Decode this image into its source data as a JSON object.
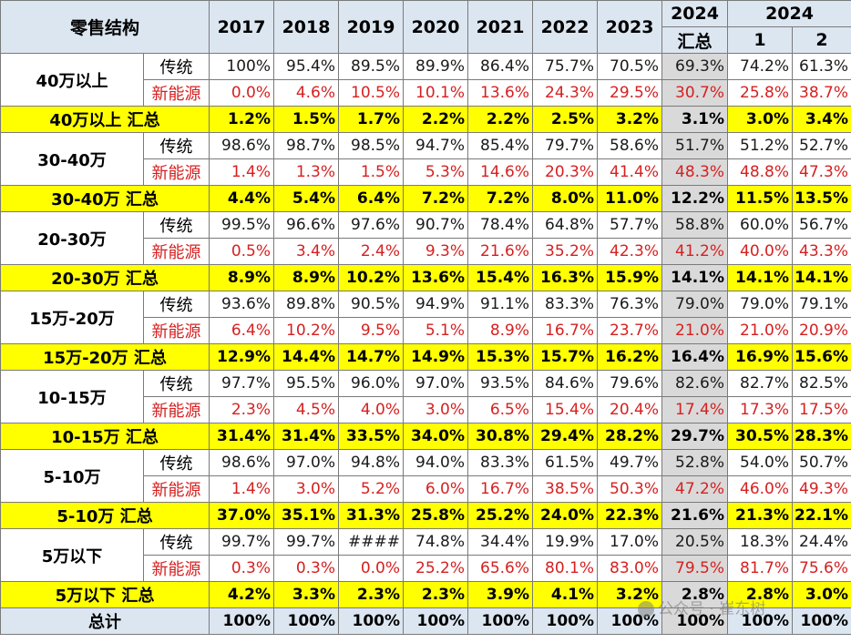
{
  "header": {
    "corner": "零售结构",
    "years": [
      "2017",
      "2018",
      "2019",
      "2020",
      "2021",
      "2022",
      "2023"
    ],
    "ytd_year": "2024",
    "ytd_label": "汇总",
    "monthly_year": "2024",
    "months": [
      "1",
      "2"
    ]
  },
  "groups": [
    {
      "category": "40万以上",
      "trad_label": "传统",
      "nev_label": "新能源",
      "trad": [
        "100%",
        "95.4%",
        "89.5%",
        "89.9%",
        "86.4%",
        "75.7%",
        "70.5%",
        "69.3%",
        "74.2%",
        "61.3%"
      ],
      "nev": [
        "0.0%",
        "4.6%",
        "10.5%",
        "10.1%",
        "13.6%",
        "24.3%",
        "29.5%",
        "30.7%",
        "25.8%",
        "38.7%"
      ],
      "sum_label": "40万以上 汇总",
      "sum": [
        "1.2%",
        "1.5%",
        "1.7%",
        "2.2%",
        "2.2%",
        "2.5%",
        "3.2%",
        "3.1%",
        "3.0%",
        "3.4%"
      ]
    },
    {
      "category": "30-40万",
      "trad_label": "传统",
      "nev_label": "新能源",
      "trad": [
        "98.6%",
        "98.7%",
        "98.5%",
        "94.7%",
        "85.4%",
        "79.7%",
        "58.6%",
        "51.7%",
        "51.2%",
        "52.7%"
      ],
      "nev": [
        "1.4%",
        "1.3%",
        "1.5%",
        "5.3%",
        "14.6%",
        "20.3%",
        "41.4%",
        "48.3%",
        "48.8%",
        "47.3%"
      ],
      "sum_label": "30-40万 汇总",
      "sum": [
        "4.4%",
        "5.4%",
        "6.4%",
        "7.2%",
        "7.2%",
        "8.0%",
        "11.0%",
        "12.2%",
        "11.5%",
        "13.5%"
      ]
    },
    {
      "category": "20-30万",
      "trad_label": "传统",
      "nev_label": "新能源",
      "trad": [
        "99.5%",
        "96.6%",
        "97.6%",
        "90.7%",
        "78.4%",
        "64.8%",
        "57.7%",
        "58.8%",
        "60.0%",
        "56.7%"
      ],
      "nev": [
        "0.5%",
        "3.4%",
        "2.4%",
        "9.3%",
        "21.6%",
        "35.2%",
        "42.3%",
        "41.2%",
        "40.0%",
        "43.3%"
      ],
      "sum_label": "20-30万 汇总",
      "sum": [
        "8.9%",
        "8.9%",
        "10.2%",
        "13.6%",
        "15.4%",
        "16.3%",
        "15.9%",
        "14.1%",
        "14.1%",
        "14.1%"
      ]
    },
    {
      "category": "15万-20万",
      "trad_label": "传统",
      "nev_label": "新能源",
      "trad": [
        "93.6%",
        "89.8%",
        "90.5%",
        "94.9%",
        "91.1%",
        "83.3%",
        "76.3%",
        "79.0%",
        "79.0%",
        "79.1%"
      ],
      "nev": [
        "6.4%",
        "10.2%",
        "9.5%",
        "5.1%",
        "8.9%",
        "16.7%",
        "23.7%",
        "21.0%",
        "21.0%",
        "20.9%"
      ],
      "sum_label": "15万-20万 汇总",
      "sum": [
        "12.9%",
        "14.4%",
        "14.7%",
        "14.9%",
        "15.3%",
        "15.7%",
        "16.2%",
        "16.4%",
        "16.9%",
        "15.6%"
      ]
    },
    {
      "category": "10-15万",
      "trad_label": "传统",
      "nev_label": "新能源",
      "trad": [
        "97.7%",
        "95.5%",
        "96.0%",
        "97.0%",
        "93.5%",
        "84.6%",
        "79.6%",
        "82.6%",
        "82.7%",
        "82.5%"
      ],
      "nev": [
        "2.3%",
        "4.5%",
        "4.0%",
        "3.0%",
        "6.5%",
        "15.4%",
        "20.4%",
        "17.4%",
        "17.3%",
        "17.5%"
      ],
      "sum_label": "10-15万 汇总",
      "sum": [
        "31.4%",
        "31.4%",
        "33.5%",
        "34.0%",
        "30.8%",
        "29.4%",
        "28.2%",
        "29.7%",
        "30.5%",
        "28.3%"
      ]
    },
    {
      "category": "5-10万",
      "trad_label": "传统",
      "nev_label": "新能源",
      "trad": [
        "98.6%",
        "97.0%",
        "94.8%",
        "94.0%",
        "83.3%",
        "61.5%",
        "49.7%",
        "52.8%",
        "54.0%",
        "50.7%"
      ],
      "nev": [
        "1.4%",
        "3.0%",
        "5.2%",
        "6.0%",
        "16.7%",
        "38.5%",
        "50.3%",
        "47.2%",
        "46.0%",
        "49.3%"
      ],
      "sum_label": "5-10万 汇总",
      "sum": [
        "37.0%",
        "35.1%",
        "31.3%",
        "25.8%",
        "25.2%",
        "24.0%",
        "22.3%",
        "21.6%",
        "21.3%",
        "22.1%"
      ]
    },
    {
      "category": "5万以下",
      "trad_label": "传统",
      "nev_label": "新能源",
      "trad": [
        "99.7%",
        "99.7%",
        "####",
        "74.8%",
        "34.4%",
        "19.9%",
        "17.0%",
        "20.5%",
        "18.3%",
        "24.4%"
      ],
      "nev": [
        "0.3%",
        "0.3%",
        "0.0%",
        "25.2%",
        "65.6%",
        "80.1%",
        "83.0%",
        "79.5%",
        "81.7%",
        "75.6%"
      ],
      "sum_label": "5万以下 汇总",
      "sum": [
        "4.2%",
        "3.3%",
        "2.3%",
        "2.3%",
        "3.9%",
        "4.1%",
        "3.2%",
        "2.8%",
        "2.8%",
        "3.0%"
      ]
    }
  ],
  "total": {
    "label": "总计",
    "values": [
      "100%",
      "100%",
      "100%",
      "100%",
      "100%",
      "100%",
      "100%",
      "100%",
      "100%",
      "100%"
    ]
  },
  "watermark": "公众号 · 崔东树",
  "colors": {
    "header_bg": "#dce6f1",
    "summary_bg": "#ffff00",
    "highlight_col": "#d9d9d9",
    "nev_text": "#d62020"
  }
}
